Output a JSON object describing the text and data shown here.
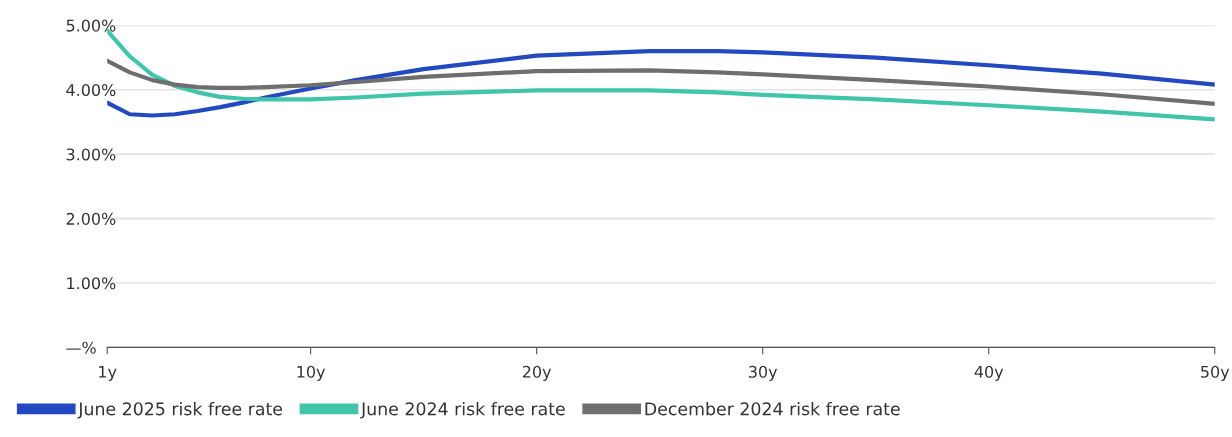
{
  "chart_data": {
    "type": "line",
    "x": [
      1,
      2,
      3,
      4,
      5,
      6,
      7,
      8,
      10,
      12,
      15,
      20,
      25,
      28,
      30,
      35,
      40,
      45,
      50
    ],
    "series": [
      {
        "name": "June 2025 risk free rate",
        "color": "#2249c0",
        "values": [
          3.8,
          3.62,
          3.6,
          3.62,
          3.67,
          3.73,
          3.8,
          3.88,
          4.02,
          4.15,
          4.32,
          4.53,
          4.6,
          4.6,
          4.58,
          4.5,
          4.38,
          4.25,
          4.08
        ]
      },
      {
        "name": "June 2024 risk free rate",
        "color": "#40c4aa",
        "values": [
          4.92,
          4.52,
          4.23,
          4.06,
          3.96,
          3.89,
          3.86,
          3.85,
          3.85,
          3.88,
          3.94,
          3.99,
          3.99,
          3.96,
          3.92,
          3.85,
          3.76,
          3.66,
          3.54
        ]
      },
      {
        "name": "December 2024 risk free rate",
        "color": "#6e6e6e",
        "values": [
          4.45,
          4.27,
          4.15,
          4.08,
          4.04,
          4.03,
          4.03,
          4.04,
          4.07,
          4.12,
          4.2,
          4.29,
          4.3,
          4.27,
          4.24,
          4.15,
          4.05,
          3.93,
          3.78
        ]
      }
    ],
    "xlim": [
      1,
      50
    ],
    "xticks": [
      {
        "value": 1,
        "label": "1y"
      },
      {
        "value": 10,
        "label": "10y"
      },
      {
        "value": 20,
        "label": "20y"
      },
      {
        "value": 30,
        "label": "30y"
      },
      {
        "value": 40,
        "label": "40y"
      },
      {
        "value": 50,
        "label": "50y"
      }
    ],
    "ylim": [
      0,
      5
    ],
    "yticks": [
      {
        "value": 0,
        "label": "—%"
      },
      {
        "value": 1,
        "label": "1.00%"
      },
      {
        "value": 2,
        "label": "2.00%"
      },
      {
        "value": 3,
        "label": "3.00%"
      },
      {
        "value": 4,
        "label": "4.00%"
      },
      {
        "value": 5,
        "label": "5.00%"
      }
    ],
    "grid": "y",
    "legend": "bottom left",
    "marker": "none",
    "line_style": "solid"
  }
}
